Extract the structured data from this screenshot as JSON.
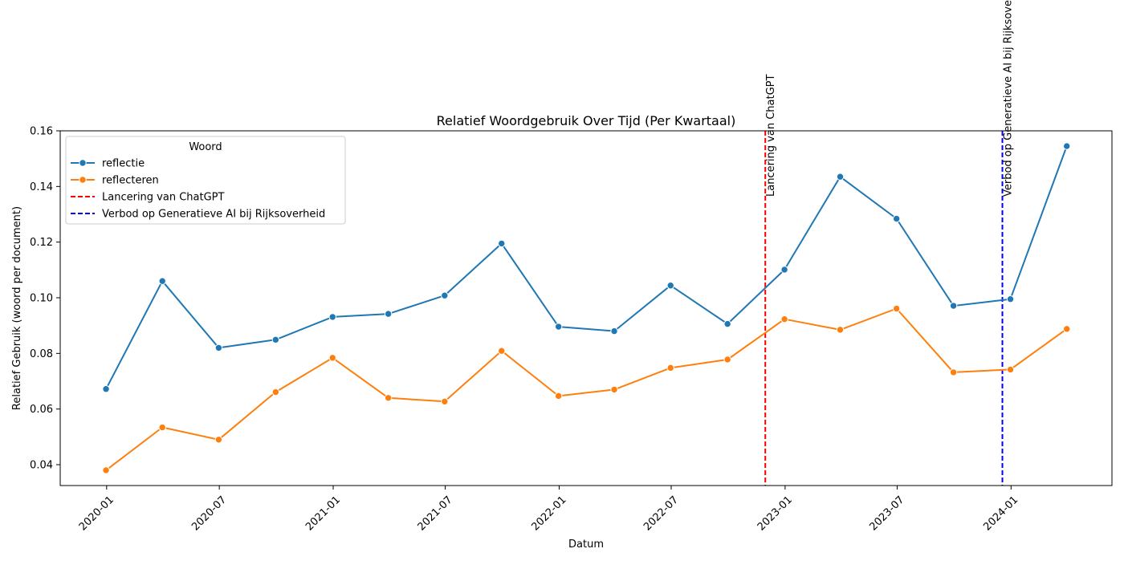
{
  "chart_data": {
    "type": "line",
    "title": "Relatief Woordgebruik Over Tijd (Per Kwartaal)",
    "xlabel": "Datum",
    "ylabel": "Relatief Gebruik (woord per document)",
    "ylim": [
      0.0325,
      0.16
    ],
    "yticks": [
      0.04,
      0.06,
      0.08,
      0.1,
      0.12,
      0.14,
      0.16
    ],
    "ytick_labels": [
      "0.04",
      "0.06",
      "0.08",
      "0.10",
      "0.12",
      "0.14",
      "0.16"
    ],
    "xlim": [
      "2019-10-18",
      "2024-06-12"
    ],
    "xticks": [
      "2020-01-01",
      "2020-07-01",
      "2021-01-01",
      "2021-07-01",
      "2022-01-01",
      "2022-07-01",
      "2023-01-01",
      "2023-07-01",
      "2024-01-01"
    ],
    "xtick_labels": [
      "2020-01",
      "2020-07",
      "2021-01",
      "2021-07",
      "2022-01",
      "2022-07",
      "2023-01",
      "2023-07",
      "2024-01"
    ],
    "x": [
      "2019-12-31",
      "2020-03-31",
      "2020-06-30",
      "2020-09-30",
      "2020-12-31",
      "2021-03-31",
      "2021-06-30",
      "2021-09-30",
      "2021-12-31",
      "2022-03-31",
      "2022-06-30",
      "2022-09-30",
      "2022-12-31",
      "2023-03-31",
      "2023-06-30",
      "2023-09-30",
      "2023-12-31",
      "2024-03-31"
    ],
    "series": [
      {
        "name": "reflectie",
        "color": "#1f77b4",
        "values": [
          0.0672,
          0.106,
          0.082,
          0.0849,
          0.0931,
          0.0942,
          0.1008,
          0.1195,
          0.0896,
          0.088,
          0.1044,
          0.0906,
          0.1101,
          0.1435,
          0.1284,
          0.0971,
          0.0995,
          0.1545
        ]
      },
      {
        "name": "reflecteren",
        "color": "#ff7f0e",
        "values": [
          0.038,
          0.0534,
          0.049,
          0.0661,
          0.0784,
          0.064,
          0.0627,
          0.0809,
          0.0647,
          0.067,
          0.0748,
          0.0778,
          0.0923,
          0.0885,
          0.0961,
          0.0732,
          0.0742,
          0.0888
        ]
      }
    ],
    "annotations": [
      {
        "label": "Lancering van ChatGPT",
        "date": "2022-11-30",
        "color": "#ff0000"
      },
      {
        "label": "Verbod op Generatieve AI bij Rijksoverheid",
        "date": "2023-12-18",
        "color": "#0000ff"
      }
    ],
    "grid": false,
    "legend": {
      "title": "Woord",
      "placement": "top-left",
      "entries": [
        "reflectie",
        "reflecteren",
        "Lancering van ChatGPT",
        "Verbod op Generatieve AI bij Rijksoverheid"
      ]
    }
  }
}
